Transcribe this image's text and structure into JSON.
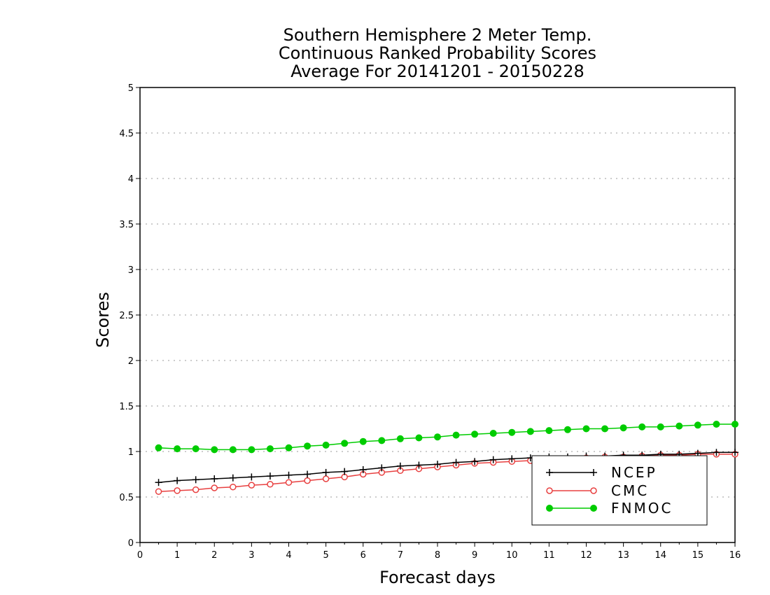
{
  "chart_data": {
    "type": "line",
    "title": [
      "Southern Hemisphere 2 Meter Temp.",
      "Continuous Ranked Probability Scores",
      "Average For 20141201 - 20150228"
    ],
    "xlabel": "Forecast days",
    "ylabel": "Scores",
    "xlim": [
      0,
      16
    ],
    "ylim": [
      0,
      5
    ],
    "x_ticks": [
      0,
      1,
      2,
      3,
      4,
      5,
      6,
      7,
      8,
      9,
      10,
      11,
      12,
      13,
      14,
      15,
      16
    ],
    "x_tick_labels": [
      "0",
      "1",
      "2",
      "3",
      "4",
      "5",
      "6",
      "7",
      "8",
      "9",
      "10",
      "11",
      "12",
      "13",
      "14",
      "15",
      "16"
    ],
    "y_ticks": [
      0,
      0.5,
      1,
      1.5,
      2,
      2.5,
      3,
      3.5,
      4,
      4.5,
      5
    ],
    "y_tick_labels": [
      "0",
      "0.5",
      "1",
      "1.5",
      "2",
      "2.5",
      "3",
      "3.5",
      "4",
      "4.5",
      "5"
    ],
    "grid": "horizontal dotted",
    "legend_position": "bottom-right",
    "x": [
      0.5,
      1,
      1.5,
      2,
      2.5,
      3,
      3.5,
      4,
      4.5,
      5,
      5.5,
      6,
      6.5,
      7,
      7.5,
      8,
      8.5,
      9,
      9.5,
      10,
      10.5,
      11,
      11.5,
      12,
      12.5,
      13,
      13.5,
      14,
      14.5,
      15,
      15.5,
      16
    ],
    "series": [
      {
        "name": "NCEP",
        "color": "#000000",
        "marker": "plus",
        "values": [
          0.66,
          0.68,
          0.69,
          0.7,
          0.71,
          0.72,
          0.73,
          0.74,
          0.75,
          0.77,
          0.78,
          0.8,
          0.82,
          0.84,
          0.85,
          0.86,
          0.88,
          0.89,
          0.91,
          0.92,
          0.93,
          0.94,
          0.94,
          0.95,
          0.95,
          0.96,
          0.96,
          0.97,
          0.97,
          0.98,
          0.99,
          0.99
        ]
      },
      {
        "name": "CMC",
        "color": "#e84040",
        "marker": "open-circle",
        "values": [
          0.56,
          0.57,
          0.58,
          0.6,
          0.61,
          0.63,
          0.64,
          0.66,
          0.68,
          0.7,
          0.72,
          0.75,
          0.77,
          0.79,
          0.81,
          0.83,
          0.85,
          0.87,
          0.88,
          0.89,
          0.9,
          0.91,
          0.92,
          0.93,
          0.94,
          0.94,
          0.95,
          0.96,
          0.96,
          0.97,
          0.97,
          0.97
        ]
      },
      {
        "name": "FNMOC",
        "color": "#00cc00",
        "marker": "filled-circle",
        "values": [
          1.04,
          1.03,
          1.03,
          1.02,
          1.02,
          1.02,
          1.03,
          1.04,
          1.06,
          1.07,
          1.09,
          1.11,
          1.12,
          1.14,
          1.15,
          1.16,
          1.18,
          1.19,
          1.2,
          1.21,
          1.22,
          1.23,
          1.24,
          1.25,
          1.25,
          1.26,
          1.27,
          1.27,
          1.28,
          1.29,
          1.3,
          1.3
        ]
      }
    ]
  }
}
